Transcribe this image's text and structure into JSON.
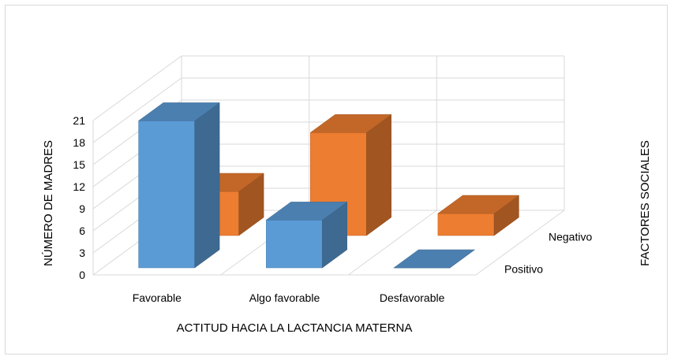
{
  "chart_data": {
    "type": "bar",
    "subtype": "3d-clustered-depth",
    "title": "",
    "categories": [
      "Favorable",
      "Algo favorable",
      "Desfavorable"
    ],
    "series": [
      {
        "name": "Positivo",
        "values": [
          20,
          6.5,
          0
        ],
        "color": "#5b9bd5"
      },
      {
        "name": "Negativo",
        "values": [
          6,
          14,
          3
        ],
        "color": "#ed7d31"
      }
    ],
    "xlabel": "ACTITUD HACIA LA LACTANCIA MATERNA",
    "ylabel": "NÚMERO DE MADRES",
    "zlabel": "FACTORES SOCIALES",
    "ylim": [
      0,
      21
    ],
    "yticks": [
      "0",
      "3",
      "6",
      "9",
      "12",
      "15",
      "18",
      "21"
    ],
    "grid": true,
    "legend": "none"
  }
}
